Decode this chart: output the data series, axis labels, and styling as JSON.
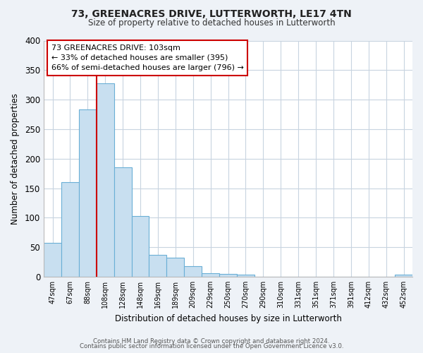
{
  "title": "73, GREENACRES DRIVE, LUTTERWORTH, LE17 4TN",
  "subtitle": "Size of property relative to detached houses in Lutterworth",
  "xlabel": "Distribution of detached houses by size in Lutterworth",
  "ylabel": "Number of detached properties",
  "bar_labels": [
    "47sqm",
    "67sqm",
    "88sqm",
    "108sqm",
    "128sqm",
    "148sqm",
    "169sqm",
    "189sqm",
    "209sqm",
    "229sqm",
    "250sqm",
    "270sqm",
    "290sqm",
    "310sqm",
    "331sqm",
    "351sqm",
    "371sqm",
    "391sqm",
    "412sqm",
    "432sqm",
    "452sqm"
  ],
  "bar_values": [
    57,
    160,
    283,
    328,
    185,
    103,
    37,
    32,
    18,
    6,
    5,
    4,
    0,
    0,
    0,
    0,
    0,
    0,
    0,
    0,
    3
  ],
  "bar_color": "#c8dff0",
  "bar_edge_color": "#6aafd6",
  "ylim": [
    0,
    400
  ],
  "yticks": [
    0,
    50,
    100,
    150,
    200,
    250,
    300,
    350,
    400
  ],
  "vline_x_idx": 3,
  "vline_color": "#cc0000",
  "annotation_title": "73 GREENACRES DRIVE: 103sqm",
  "annotation_line1": "← 33% of detached houses are smaller (395)",
  "annotation_line2": "66% of semi-detached houses are larger (796) →",
  "annotation_box_color": "#ffffff",
  "annotation_box_edge": "#cc0000",
  "footer_line1": "Contains HM Land Registry data © Crown copyright and database right 2024.",
  "footer_line2": "Contains public sector information licensed under the Open Government Licence v3.0.",
  "background_color": "#eef2f7",
  "plot_bg_color": "#ffffff",
  "grid_color": "#c8d4e0"
}
